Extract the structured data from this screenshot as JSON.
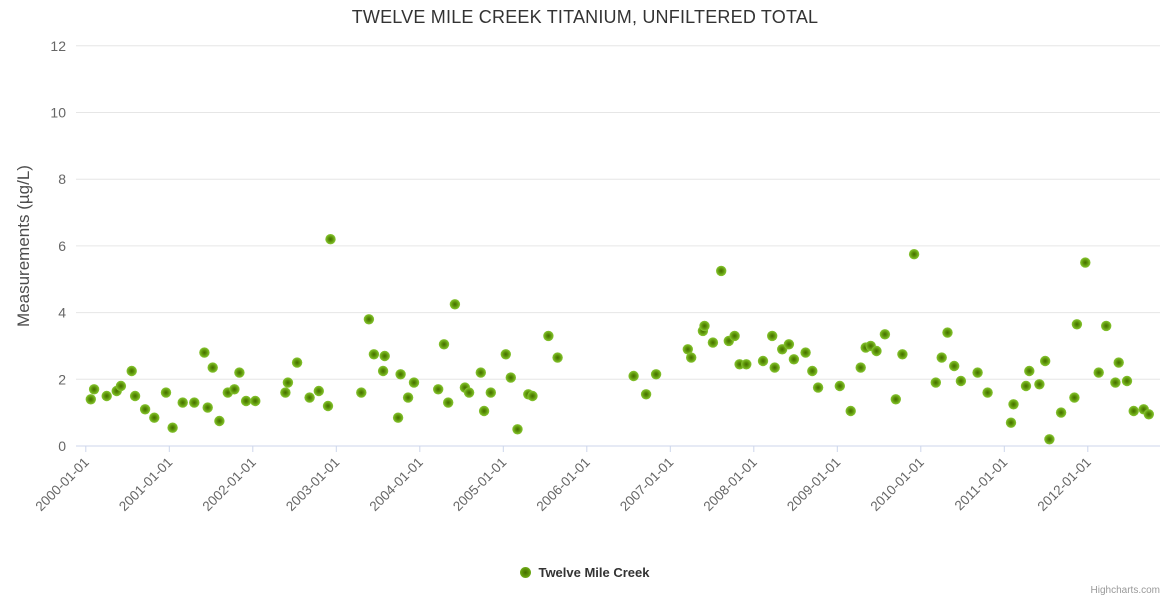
{
  "title": "TWELVE MILE CREEK TITANIUM, UNFILTERED TOTAL",
  "credits": "Highcharts.com",
  "colors": {
    "series_green_outer": "#7cbb26",
    "series_green_core": "#446c00",
    "grid_line": "#e6e6e6",
    "axis_line": "#ccd6eb",
    "tick_label": "#666666",
    "title_text": "#333333"
  },
  "chart_data": {
    "type": "scatter",
    "title": "TWELVE MILE CREEK TITANIUM, UNFILTERED TOTAL",
    "xlabel": "",
    "ylabel": "Measurements (µg/L)",
    "ylim": [
      0,
      12
    ],
    "y_ticks": [
      0,
      2,
      4,
      6,
      8,
      10,
      12
    ],
    "xlim": [
      1999.88,
      2012.87
    ],
    "x_tick_labels": [
      "2000-01-01",
      "2001-01-01",
      "2002-01-01",
      "2003-01-01",
      "2004-01-01",
      "2005-01-01",
      "2006-01-01",
      "2007-01-01",
      "2008-01-01",
      "2009-01-01",
      "2010-01-01",
      "2011-01-01",
      "2012-01-01"
    ],
    "grid": "horizontal",
    "legend_position": "bottom-center",
    "series": [
      {
        "name": "Twelve Mile Creek",
        "color": "#69a800",
        "points": [
          [
            2000.06,
            1.4
          ],
          [
            2000.1,
            1.7
          ],
          [
            2000.25,
            1.5
          ],
          [
            2000.37,
            1.65
          ],
          [
            2000.42,
            1.8
          ],
          [
            2000.55,
            2.25
          ],
          [
            2000.59,
            1.5
          ],
          [
            2000.71,
            1.1
          ],
          [
            2000.82,
            0.85
          ],
          [
            2000.96,
            1.6
          ],
          [
            2001.04,
            0.55
          ],
          [
            2001.16,
            1.3
          ],
          [
            2001.3,
            1.3
          ],
          [
            2001.42,
            2.8
          ],
          [
            2001.46,
            1.15
          ],
          [
            2001.52,
            2.35
          ],
          [
            2001.6,
            0.75
          ],
          [
            2001.7,
            1.6
          ],
          [
            2001.78,
            1.7
          ],
          [
            2001.84,
            2.2
          ],
          [
            2001.92,
            1.35
          ],
          [
            2002.03,
            1.35
          ],
          [
            2002.39,
            1.6
          ],
          [
            2002.42,
            1.9
          ],
          [
            2002.53,
            2.5
          ],
          [
            2002.68,
            1.45
          ],
          [
            2002.79,
            1.65
          ],
          [
            2002.9,
            1.2
          ],
          [
            2002.93,
            6.2
          ],
          [
            2003.3,
            1.6
          ],
          [
            2003.39,
            3.8
          ],
          [
            2003.45,
            2.75
          ],
          [
            2003.56,
            2.25
          ],
          [
            2003.58,
            2.7
          ],
          [
            2003.74,
            0.85
          ],
          [
            2003.77,
            2.15
          ],
          [
            2003.86,
            1.45
          ],
          [
            2003.93,
            1.9
          ],
          [
            2004.22,
            1.7
          ],
          [
            2004.29,
            3.05
          ],
          [
            2004.34,
            1.3
          ],
          [
            2004.42,
            4.25
          ],
          [
            2004.54,
            1.75
          ],
          [
            2004.59,
            1.6
          ],
          [
            2004.73,
            2.2
          ],
          [
            2004.77,
            1.05
          ],
          [
            2004.85,
            1.6
          ],
          [
            2005.03,
            2.75
          ],
          [
            2005.09,
            2.05
          ],
          [
            2005.17,
            0.5
          ],
          [
            2005.3,
            1.55
          ],
          [
            2005.35,
            1.5
          ],
          [
            2005.54,
            3.3
          ],
          [
            2005.65,
            2.65
          ],
          [
            2006.56,
            2.1
          ],
          [
            2006.71,
            1.55
          ],
          [
            2006.83,
            2.15
          ],
          [
            2007.21,
            2.9
          ],
          [
            2007.25,
            2.65
          ],
          [
            2007.39,
            3.45
          ],
          [
            2007.41,
            3.6
          ],
          [
            2007.51,
            3.1
          ],
          [
            2007.61,
            5.25
          ],
          [
            2007.7,
            3.15
          ],
          [
            2007.77,
            3.3
          ],
          [
            2007.83,
            2.45
          ],
          [
            2007.91,
            2.45
          ],
          [
            2008.11,
            2.55
          ],
          [
            2008.22,
            3.3
          ],
          [
            2008.25,
            2.35
          ],
          [
            2008.34,
            2.9
          ],
          [
            2008.42,
            3.05
          ],
          [
            2008.48,
            2.6
          ],
          [
            2008.62,
            2.8
          ],
          [
            2008.7,
            2.25
          ],
          [
            2008.77,
            1.75
          ],
          [
            2009.03,
            1.8
          ],
          [
            2009.16,
            1.05
          ],
          [
            2009.28,
            2.35
          ],
          [
            2009.34,
            2.95
          ],
          [
            2009.4,
            3.0
          ],
          [
            2009.47,
            2.85
          ],
          [
            2009.57,
            3.35
          ],
          [
            2009.7,
            1.4
          ],
          [
            2009.78,
            2.75
          ],
          [
            2009.92,
            5.75
          ],
          [
            2010.18,
            1.9
          ],
          [
            2010.25,
            2.65
          ],
          [
            2010.32,
            3.4
          ],
          [
            2010.4,
            2.4
          ],
          [
            2010.48,
            1.95
          ],
          [
            2010.68,
            2.2
          ],
          [
            2010.8,
            1.6
          ],
          [
            2011.08,
            0.7
          ],
          [
            2011.11,
            1.25
          ],
          [
            2011.26,
            1.8
          ],
          [
            2011.3,
            2.25
          ],
          [
            2011.42,
            1.85
          ],
          [
            2011.49,
            2.55
          ],
          [
            2011.54,
            0.2
          ],
          [
            2011.68,
            1.0
          ],
          [
            2011.84,
            1.45
          ],
          [
            2011.87,
            3.65
          ],
          [
            2011.97,
            5.5
          ],
          [
            2012.13,
            2.2
          ],
          [
            2012.22,
            3.6
          ],
          [
            2012.33,
            1.9
          ],
          [
            2012.37,
            2.5
          ],
          [
            2012.47,
            1.95
          ],
          [
            2012.55,
            1.05
          ],
          [
            2012.67,
            1.1
          ],
          [
            2012.73,
            0.95
          ]
        ]
      }
    ]
  }
}
